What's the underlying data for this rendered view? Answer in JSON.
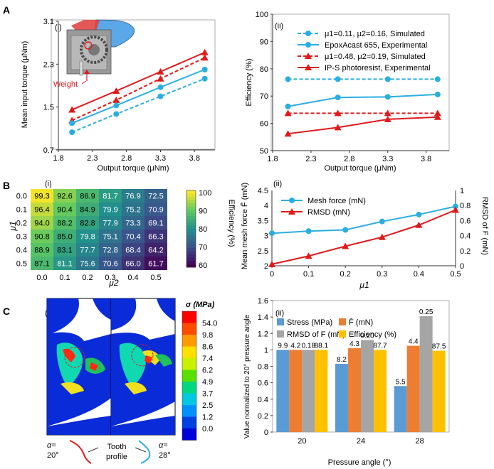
{
  "panel_labels": {
    "A": "A",
    "B": "B",
    "C": "C"
  },
  "subpanel_labels": {
    "Ai": "(i)",
    "Aii": "(ii)",
    "Bi": "(i)",
    "Bii": "(ii)",
    "Ci": "(i)",
    "Cii": "(ii)"
  },
  "colors": {
    "blue": "#2aaee0",
    "red": "#e0191b",
    "bar_blue": "#5b9bd5",
    "bar_orange": "#ed7d31",
    "bar_gray": "#a5a5a5",
    "bar_yellow": "#ffc000"
  },
  "inset_Ai": {
    "weight_label": "Weight"
  },
  "chart_data": [
    {
      "id": "Ai",
      "type": "line",
      "xlabel": "Output torque (μNm)",
      "ylabel": "Mean input torque (μNm)",
      "xlim": [
        1.8,
        4.1
      ],
      "ylim": [
        0.7,
        3.1
      ],
      "xticks": [
        "1.8",
        "2.3",
        "2.8",
        "3.3",
        "3.8"
      ],
      "yticks": [
        "0.7",
        "1.5",
        "2.3",
        "3.1"
      ],
      "series": [
        {
          "color": "#e0191b",
          "style": "solid",
          "marker": "triangle",
          "x": [
            2.0,
            2.65,
            3.3,
            3.95
          ],
          "y": [
            1.45,
            1.8,
            2.16,
            2.52
          ]
        },
        {
          "color": "#e0191b",
          "style": "dashed",
          "marker": "triangle",
          "x": [
            2.0,
            2.65,
            3.3,
            3.95
          ],
          "y": [
            1.25,
            1.63,
            2.03,
            2.42
          ]
        },
        {
          "color": "#2aaee0",
          "style": "solid",
          "marker": "circle",
          "x": [
            2.0,
            2.65,
            3.3,
            3.95
          ],
          "y": [
            1.2,
            1.53,
            1.87,
            2.2
          ]
        },
        {
          "color": "#2aaee0",
          "style": "dashed",
          "marker": "circle",
          "x": [
            2.0,
            2.65,
            3.3,
            3.95
          ],
          "y": [
            1.03,
            1.37,
            1.7,
            2.03
          ]
        }
      ]
    },
    {
      "id": "Aii",
      "type": "line",
      "xlabel": "Output torque (μNm)",
      "ylabel": "Efficiency (%)",
      "xlim": [
        1.8,
        4.1
      ],
      "ylim": [
        50,
        100
      ],
      "xticks": [
        "1.8",
        "2.3",
        "2.8",
        "3.3",
        "3.8"
      ],
      "yticks": [
        "50",
        "60",
        "70",
        "80",
        "90",
        "100"
      ],
      "series": [
        {
          "name": "μ1=0.11, μ2=0.16, Simulated",
          "color": "#2aaee0",
          "style": "dashed",
          "marker": "circle",
          "x": [
            2.0,
            2.65,
            3.3,
            3.95
          ],
          "y": [
            76.2,
            76.2,
            76.2,
            76.2
          ]
        },
        {
          "name": "EpoxAcast 655, Experimental",
          "color": "#2aaee0",
          "style": "solid",
          "marker": "circle",
          "x": [
            2.0,
            2.65,
            3.3,
            3.95
          ],
          "y": [
            66.2,
            69.5,
            69.7,
            70.6
          ]
        },
        {
          "name": "μ1=0.48, μ2=0.19, Simulated",
          "color": "#e0191b",
          "style": "dashed",
          "marker": "triangle",
          "x": [
            2.0,
            2.65,
            3.3,
            3.95
          ],
          "y": [
            63.7,
            63.7,
            63.7,
            63.7
          ]
        },
        {
          "name": "IP-S photoresist, Experimental",
          "color": "#e0191b",
          "style": "solid",
          "marker": "triangle",
          "x": [
            2.0,
            2.65,
            3.3,
            3.95
          ],
          "y": [
            56.2,
            58.5,
            61.5,
            62.3
          ]
        }
      ]
    },
    {
      "id": "Bi",
      "type": "heatmap",
      "xlabel": "μ2",
      "ylabel": "μ1",
      "xticks": [
        "0.0",
        "0.1",
        "0.2",
        "0.3",
        "0.4",
        "0.5"
      ],
      "yticks": [
        "0.0",
        "0.1",
        "0.2",
        "0.3",
        "0.4",
        "0.5"
      ],
      "values": [
        [
          99.3,
          92.6,
          86.9,
          81.7,
          76.9,
          72.5
        ],
        [
          96.4,
          90.4,
          84.9,
          79.9,
          75.2,
          70.9
        ],
        [
          94.0,
          88.2,
          82.8,
          77.9,
          73.3,
          69.1
        ],
        [
          90.8,
          85.0,
          79.8,
          75.1,
          70.4,
          66.3
        ],
        [
          88.9,
          83.1,
          77.7,
          72.8,
          68.4,
          64.2
        ],
        [
          87.1,
          81.1,
          75.6,
          70.6,
          66.0,
          61.7
        ]
      ],
      "colorbar": {
        "label": "Efficiency (%)",
        "range": [
          60,
          100
        ],
        "ticks": [
          "100",
          "90",
          "80",
          "70",
          "60"
        ]
      }
    },
    {
      "id": "Bii",
      "type": "line",
      "xlabel": "μ1",
      "ylabel": "Mean mesh force F̄ (mN)",
      "y2label": "RMSD of F (mN)",
      "xlim": [
        0,
        0.5
      ],
      "ylim": [
        2,
        4.5
      ],
      "y2lim": [
        0,
        1
      ],
      "xticks": [
        "0",
        "0.1",
        "0.2",
        "0.3",
        "0.4",
        "0.5"
      ],
      "yticks": [
        "2",
        "2.5",
        "3",
        "3.5",
        "4",
        "4.5"
      ],
      "y2ticks": [
        "0",
        "0.2",
        "0.4",
        "0.6",
        "0.8",
        "1"
      ],
      "series": [
        {
          "name": "Mesh force (mN)",
          "color": "#2aaee0",
          "marker": "circle",
          "axis": "left",
          "x": [
            0,
            0.1,
            0.2,
            0.3,
            0.4,
            0.5
          ],
          "y": [
            3.08,
            3.15,
            3.19,
            3.47,
            3.7,
            3.97
          ]
        },
        {
          "name": "RMSD (mN)",
          "color": "#e0191b",
          "marker": "triangle",
          "axis": "right",
          "x": [
            0,
            0.1,
            0.2,
            0.3,
            0.4,
            0.5
          ],
          "y": [
            0.02,
            0.13,
            0.26,
            0.38,
            0.54,
            0.74
          ]
        }
      ]
    },
    {
      "id": "Cii",
      "type": "bar",
      "xlabel": "Pressure angle (°)",
      "ylabel": "Value normalized to 20° pressure angle",
      "categories": [
        "20",
        "24",
        "28"
      ],
      "ylim": [
        0,
        1.6
      ],
      "yticks": [
        "0",
        "0.2",
        "0.4",
        "0.6",
        "0.8",
        "1",
        "1.2",
        "1.4",
        "1.6"
      ],
      "series": [
        {
          "name": "Stress (MPa)",
          "color": "#5b9bd5",
          "values": [
            1.0,
            0.83,
            0.56
          ],
          "labels": [
            "9.9",
            "8.2",
            "5.5"
          ]
        },
        {
          "name": "F̄ (mN)",
          "color": "#ed7d31",
          "values": [
            1.0,
            1.02,
            1.05
          ],
          "labels": [
            "4.2",
            "4.3",
            "4.4"
          ]
        },
        {
          "name": "RMSD of F (mN)",
          "color": "#a5a5a5",
          "values": [
            1.0,
            1.12,
            1.41
          ],
          "labels": [
            "0.18",
            "0.20",
            "0.25"
          ]
        },
        {
          "name": "Efficiency (%)",
          "color": "#ffc000",
          "values": [
            1.0,
            1.0,
            0.99
          ],
          "labels": [
            "88.1",
            "87.7",
            "87.5"
          ]
        }
      ]
    }
  ],
  "fea_Ci": {
    "colorbar_title": "σ (MPa)",
    "colorbar_ticks": [
      "54.0",
      "9.8",
      "8.6",
      "7.4",
      "6.2",
      "4.9",
      "3.7",
      "2.5",
      "1.2",
      "0.0"
    ],
    "colorbar_colors": [
      "#ff0000",
      "#ff4a00",
      "#ff9a00",
      "#ffe000",
      "#c8f000",
      "#5ae000",
      "#00d880",
      "#00c8e0",
      "#0090ff",
      "#0040e0",
      "#0000d8"
    ],
    "alpha_left": "α=\n20°",
    "alpha_right": "α=\n28°",
    "tooth_profile": "Tooth profile",
    "alpha_left_1": "α=",
    "alpha_left_2": "20°",
    "alpha_right_1": "α=",
    "alpha_right_2": "28°",
    "tooth_1": "Tooth",
    "tooth_2": "profile"
  }
}
